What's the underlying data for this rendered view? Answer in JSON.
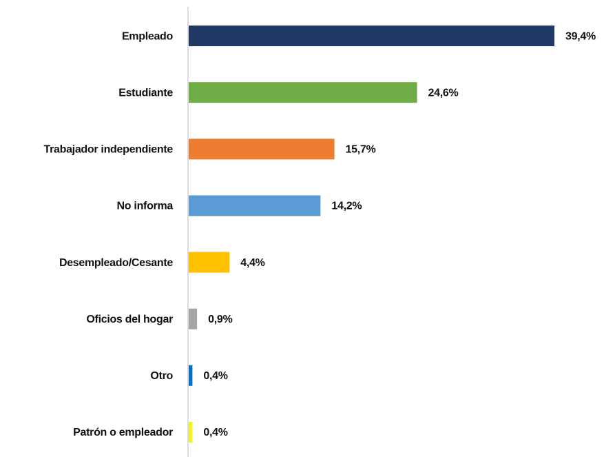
{
  "chart_data": {
    "type": "barh",
    "categories": [
      "Empleado",
      "Estudiante",
      "Trabajador independiente",
      "No informa",
      "Desempleado/Cesante",
      "Oficios del hogar",
      "Otro",
      "Patrón o empleador"
    ],
    "values": [
      39.4,
      24.6,
      15.7,
      14.2,
      4.4,
      0.9,
      0.4,
      0.4
    ],
    "value_labels": [
      "39,4%",
      "24,6%",
      "15,7%",
      "14,2%",
      "4,4%",
      "0,9%",
      "0,4%",
      "0,4%"
    ],
    "colors": [
      "#203864",
      "#70ad47",
      "#ed7d31",
      "#5b9bd5",
      "#ffc000",
      "#a5a5a5",
      "#0070c0",
      "#f2f21e"
    ],
    "xlim": [
      0,
      44
    ]
  }
}
